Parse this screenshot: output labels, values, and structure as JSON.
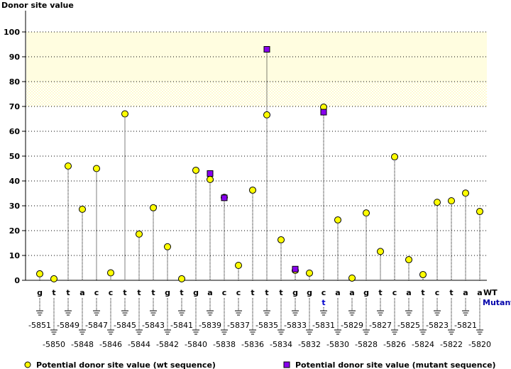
{
  "chart_data": {
    "type": "scatter",
    "title": "",
    "ylabel": "Donor site value",
    "ylim": [
      0,
      100
    ],
    "yticks": [
      0,
      10,
      20,
      30,
      40,
      50,
      60,
      70,
      80,
      90,
      100
    ],
    "grid": true,
    "highlight_bands": [
      {
        "from": 70,
        "to": 80,
        "style": "hatched",
        "color": "#fffbd0"
      },
      {
        "from": 80,
        "to": 100,
        "style": "solid",
        "color": "#fffde0"
      }
    ],
    "row_labels": {
      "wt": "WT",
      "mutant": "Mutant"
    },
    "positions": [
      -5851,
      -5850,
      -5849,
      -5848,
      -5847,
      -5846,
      -5845,
      -5844,
      -5843,
      -5842,
      -5841,
      -5840,
      -5839,
      -5838,
      -5837,
      -5836,
      -5835,
      -5834,
      -5833,
      -5832,
      -5831,
      -5830,
      -5829,
      -5828,
      -5827,
      -5826,
      -5825,
      -5824,
      -5823,
      -5822,
      -5821,
      -5820
    ],
    "wt_bases": [
      "g",
      "t",
      "t",
      "a",
      "c",
      "c",
      "t",
      "t",
      "t",
      "g",
      "t",
      "g",
      "a",
      "c",
      "c",
      "t",
      "t",
      "t",
      "g",
      "g",
      "c",
      "a",
      "a",
      "g",
      "t",
      "c",
      "a",
      "t",
      "c",
      "t",
      "a",
      "a"
    ],
    "mutant_bases": {
      "-5831": "t"
    },
    "series": [
      {
        "name": "Potential donor site value (wt sequence)",
        "marker": "circle",
        "color": "#ffff00",
        "values": [
          2.6,
          0.6,
          46,
          28.6,
          45,
          3,
          67,
          18.6,
          29.2,
          13.5,
          0.6,
          44.3,
          40.6,
          33.4,
          6,
          36.3,
          66.6,
          16.3,
          4,
          2.9,
          69.7,
          24.3,
          0.9,
          27.1,
          11.6,
          49.7,
          8.3,
          2.3,
          31.4,
          32,
          35.1,
          27.7
        ]
      },
      {
        "name": "Potential donor site value (mutant sequence)",
        "marker": "square",
        "color": "#8800ee",
        "points": [
          {
            "position": -5839,
            "value": 43
          },
          {
            "position": -5838,
            "value": 33.2
          },
          {
            "position": -5835,
            "value": 93
          },
          {
            "position": -5833,
            "value": 4.5
          },
          {
            "position": -5831,
            "value": 67.7
          }
        ]
      }
    ],
    "legend": "bottom"
  }
}
